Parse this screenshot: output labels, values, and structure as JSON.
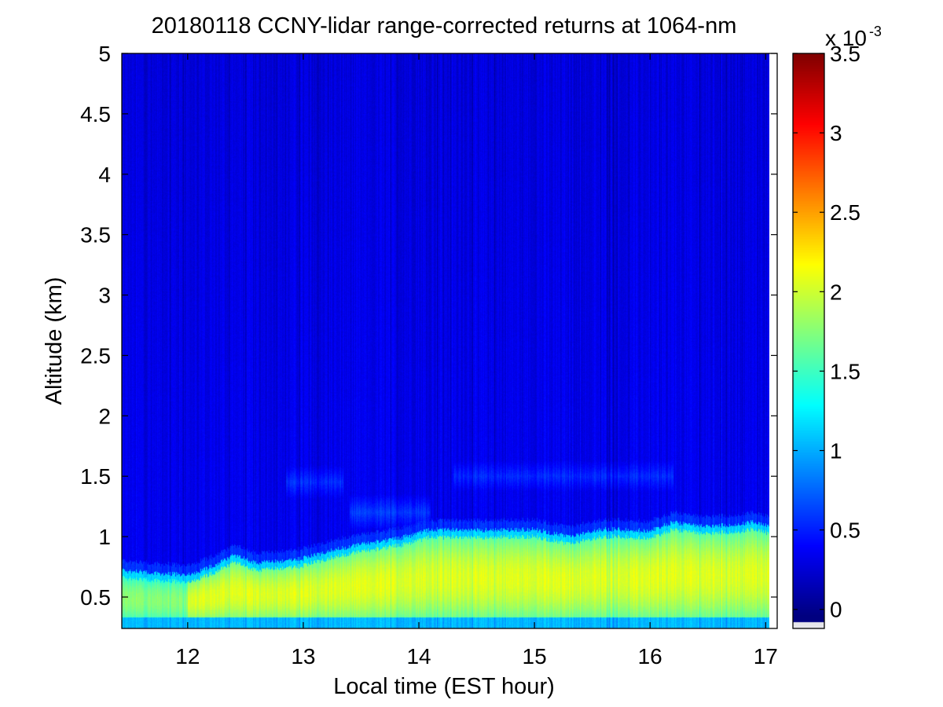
{
  "chart_data": {
    "type": "heatmap",
    "title": "20180118 CCNY-lidar range-corrected returns at 1064-nm",
    "xlabel": "Local time (EST hour)",
    "ylabel": "Altitude (km)",
    "xlim": [
      11.43,
      17.1
    ],
    "ylim": [
      0.24,
      5.0
    ],
    "x_ticks": [
      12,
      13,
      14,
      15,
      16,
      17
    ],
    "x_tick_labels": [
      "12",
      "13",
      "14",
      "15",
      "16",
      "17"
    ],
    "y_ticks": [
      0.5,
      1,
      1.5,
      2,
      2.5,
      3,
      3.5,
      4,
      4.5,
      5
    ],
    "y_tick_labels": [
      "0.5",
      "1",
      "1.5",
      "2",
      "2.5",
      "3",
      "3.5",
      "4",
      "4.5",
      "5"
    ],
    "colorbar": {
      "range": [
        -0.00012,
        0.0035
      ],
      "ticks": [
        0,
        0.0005,
        0.001,
        0.0015,
        0.002,
        0.0025,
        0.003,
        0.0035
      ],
      "tick_labels": [
        "0",
        "0.5",
        "1",
        "1.5",
        "2",
        "2.5",
        "3",
        "3.5"
      ],
      "multiplier_base": "x 10",
      "multiplier_exponent": "-3",
      "colormap": "jet"
    },
    "data_end_time": 17.05,
    "boundary_layer_top_km": {
      "time": [
        11.43,
        11.7,
        12.0,
        12.2,
        12.4,
        12.6,
        12.8,
        13.0,
        13.3,
        13.6,
        13.9,
        14.1,
        14.5,
        15.0,
        15.3,
        15.6,
        16.0,
        16.2,
        16.5,
        16.9,
        17.05
      ],
      "altitude": [
        0.72,
        0.7,
        0.68,
        0.75,
        0.85,
        0.78,
        0.8,
        0.82,
        0.9,
        0.95,
        1.0,
        1.06,
        1.05,
        1.06,
        1.0,
        1.06,
        1.05,
        1.12,
        1.08,
        1.12,
        1.08
      ]
    },
    "mixed_layer_signal": 0.0018,
    "free_troposphere_signal": 0.00028,
    "residual_aerosol_layers": [
      {
        "time_start": 12.85,
        "time_end": 13.35,
        "altitude_km": 1.45,
        "signal": 0.0005
      },
      {
        "time_start": 13.4,
        "time_end": 14.1,
        "altitude_km": 1.2,
        "signal": 0.00055
      },
      {
        "time_start": 14.3,
        "time_end": 16.2,
        "altitude_km": 1.5,
        "signal": 0.00048
      }
    ]
  }
}
